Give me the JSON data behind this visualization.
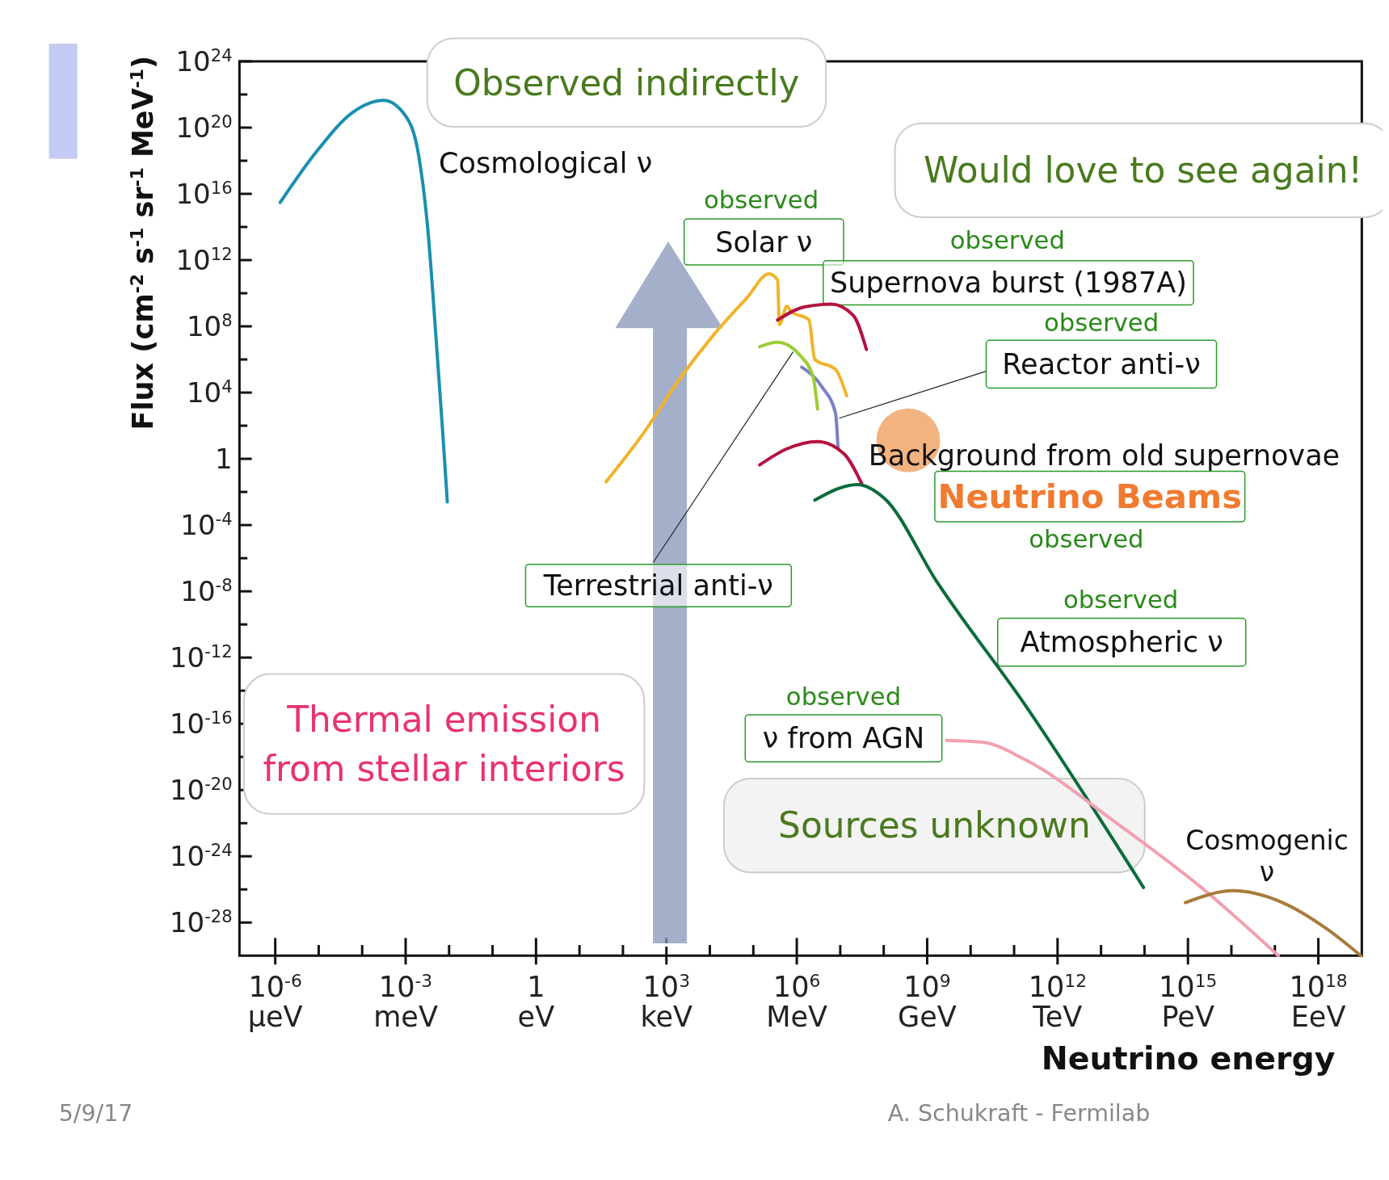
{
  "chart_data": {
    "type": "line",
    "xlabel": "Neutrino energy",
    "ylabel": "Flux (cm$^{-2}$ s$^{-1}$ sr$^{-1}$ MeV$^{-1}$)",
    "log": "xy",
    "grid": false,
    "legend": false,
    "xlim": [
      1.5e-07,
      1e+19
    ],
    "ylim": [
      1e-30,
      1e+24
    ],
    "xticks": [
      {
        "value": 1e-06,
        "label": "10$^{-6}$"
      },
      {
        "value": 1e-05,
        "label": null
      },
      {
        "value": 0.0001,
        "label": null
      },
      {
        "value": 0.001,
        "label": "10$^{-3}$"
      },
      {
        "value": 0.01,
        "label": null
      },
      {
        "value": 0.1,
        "label": null
      },
      {
        "value": 1,
        "label": "1"
      },
      {
        "value": 10,
        "label": null
      },
      {
        "value": 100,
        "label": null
      },
      {
        "value": 1000.0,
        "label": "10$^{3}$"
      },
      {
        "value": 10000.0,
        "label": null
      },
      {
        "value": 100000.0,
        "label": null
      },
      {
        "value": 1000000.0,
        "label": "10$^{6}$"
      },
      {
        "value": 10000000.0,
        "label": null
      },
      {
        "value": 100000000.0,
        "label": null
      },
      {
        "value": 1000000000.0,
        "label": "10$^{9}$"
      },
      {
        "value": 10000000000.0,
        "label": null
      },
      {
        "value": 100000000000.0,
        "label": null
      },
      {
        "value": 1000000000000.0,
        "label": "10$^{12}$"
      },
      {
        "value": 10000000000000.0,
        "label": null
      },
      {
        "value": 100000000000000.0,
        "label": null
      },
      {
        "value": 1000000000000000.0,
        "label": "10$^{15}$"
      },
      {
        "value": 1e+16,
        "label": null
      },
      {
        "value": 1e+17,
        "label": null
      },
      {
        "value": 1e+18,
        "label": "10$^{18}$"
      }
    ],
    "yticks": [
      {
        "value": 1e+24,
        "label": "10$^{24}$"
      },
      {
        "value": 1e+22,
        "label": null
      },
      {
        "value": 1e+20,
        "label": "10$^{20}$"
      },
      {
        "value": 1e+18,
        "label": null
      },
      {
        "value": 1e+16,
        "label": "10$^{16}$"
      },
      {
        "value": 100000000000000.0,
        "label": null
      },
      {
        "value": 1000000000000.0,
        "label": "10$^{12}$"
      },
      {
        "value": 10000000000.0,
        "label": null
      },
      {
        "value": 100000000.0,
        "label": "10$^{8}$"
      },
      {
        "value": 1000000.0,
        "label": null
      },
      {
        "value": 10000.0,
        "label": "10$^{4}$"
      },
      {
        "value": 100,
        "label": null
      },
      {
        "value": 1,
        "label": "1"
      },
      {
        "value": 0.01,
        "label": null
      },
      {
        "value": 0.0001,
        "label": "10$^{-4}$"
      },
      {
        "value": 1e-06,
        "label": null
      },
      {
        "value": 1e-08,
        "label": "10$^{-8}$"
      },
      {
        "value": 1e-10,
        "label": null
      },
      {
        "value": 1e-12,
        "label": "10$^{-12}$"
      },
      {
        "value": 1e-14,
        "label": null
      },
      {
        "value": 1e-16,
        "label": "10$^{-16}$"
      },
      {
        "value": 1e-18,
        "label": null
      },
      {
        "value": 1e-20,
        "label": "10$^{-20}$"
      },
      {
        "value": 1e-22,
        "label": null
      },
      {
        "value": 1e-24,
        "label": "10$^{-24}$"
      },
      {
        "value": 1e-26,
        "label": null
      },
      {
        "value": 1e-28,
        "label": "10$^{-28}$"
      }
    ],
    "series": [
      {
        "name": "Cosmological ν",
        "color": "#1a8fb0",
        "x": [
          1.3e-06,
          9.1e-06,
          5.9e-05,
          0.00031,
          0.001,
          0.002,
          0.0032,
          0.0051,
          0.0071,
          0.0091
        ],
        "values": [
          3000000000000000.0,
          3.8e+18,
          7.9e+20,
          4.4e+21,
          5e+20,
          2e+18,
          100000000000000.0,
          10000000.0,
          47,
          0.0025
        ]
      },
      {
        "name": "Solar ν",
        "color": "#f0b429",
        "x": [
          41,
          320,
          2100,
          13000.0,
          71000.0,
          230000.0,
          360000.0,
          400000.0,
          590000.0,
          740000.0,
          1900000.0,
          2600000.0,
          7800000.0,
          14000000.0
        ],
        "values": [
          0.041,
          47,
          78000.0,
          37000000.0,
          5200000000.0,
          150000000000.0,
          63000000000.0,
          130000000.0,
          1600000000.0,
          790000000.0,
          250000000.0,
          1000000.0,
          250000.0,
          6300.0
        ]
      },
      {
        "name": "Supernova burst (1987A)",
        "color": "#b5123f",
        "x": [
          360000.0,
          1500000.0,
          6200000.0,
          20000000.0,
          40000000.0
        ],
        "values": [
          240000000.0,
          1500000000.0,
          2200000000.0,
          450000000.0,
          4000000.0
        ]
      },
      {
        "name": "Reactor anti-ν",
        "color": "#7b7fc4",
        "x": [
          1300000.0,
          3800000.0,
          7800000.0,
          8900000.0
        ],
        "values": [
          340000.0,
          22000.0,
          550,
          4
        ]
      },
      {
        "name": "Background from old supernovae",
        "color": "#b5123f",
        "x": [
          140000.0,
          590000.0,
          3000000.0,
          12000000.0,
          32000000.0
        ],
        "values": [
          0.43,
          4,
          11,
          2.1,
          0.028
        ]
      },
      {
        "name": "Terrestrial anti-ν",
        "color": "#9acd32",
        "x": [
          140000.0,
          360000.0,
          1200000.0,
          2400000.0,
          3000000.0
        ],
        "values": [
          5900000.0,
          11000000.0,
          1700000.0,
          78000.0,
          1000.0
        ]
      },
      {
        "name": "Atmospheric ν",
        "color": "#0a6b3c",
        "x": [
          2600000.0,
          25000000.0,
          100000000.0,
          1700000000.0,
          190000000000.0,
          95000000000000.0
        ],
        "values": [
          0.0032,
          0.028,
          0.0045,
          3.5e-08,
          1.1e-15,
          1.3e-26
        ]
      },
      {
        "name": "ν from AGN",
        "color": "#f2a0b0",
        "x": [
          2800000000.0,
          18000000000.0,
          190000000000.0,
          20000000000000.0,
          2200000000000000.0,
          1.2e+17
        ],
        "values": [
          1e-17,
          7.9e-18,
          6.3e-19,
          1.3e-22,
          1.1e-26,
          1e-30
        ]
      },
      {
        "name": "Cosmogenic ν",
        "color": "#a87c3c",
        "x": [
          870000000000000.0,
          1.1e+16,
          1.5e+17,
          1.6e+18,
          9.5e+18
        ],
        "values": [
          1.6e-27,
          8.3e-27,
          1.6e-27,
          4e-29,
          1e-30
        ]
      }
    ],
    "annotations": [
      "Observed indirectly",
      "Would love to see again!",
      "Thermal emission from stellar interiors",
      "Sources unknown",
      "Neutrino Beams",
      "observed",
      "observed",
      "observed",
      "observed",
      "observed",
      "observed",
      "5/9/17",
      "A. Schukraft - Fermilab",
      "μeV",
      "meV",
      "eV",
      "keV",
      "MeV",
      "GeV",
      "TeV",
      "PeV",
      "EeV"
    ]
  }
}
